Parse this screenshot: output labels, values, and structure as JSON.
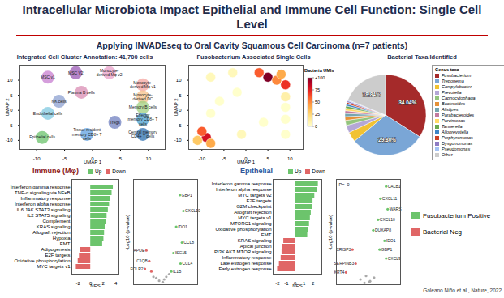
{
  "title": "Intracellular Microbiota Impact Epithelial and Immune Cell Function: Single Cell Level",
  "subtitle": "Applying INVADEseq to Oral Cavity Squamous Cell Carcinoma (n=7 patients)",
  "section_labels": {
    "immune": "Immune (Mφ)",
    "epithelial": "Epithelial"
  },
  "side_legend": [
    {
      "name": "Fusobacterium Positive",
      "color": "#6cc46c"
    },
    {
      "name": "Bacterial Neg",
      "color": "#e06666"
    }
  ],
  "citation": "Galeano Niño et al., Nature, 2022",
  "chart_data": [
    {
      "type": "scatter",
      "title": "Integrated Cell Cluster Annotation: 41,700 cells",
      "x_label": "UMAP 1",
      "y_label": "UMAP 2",
      "xlim": [
        -13,
        13
      ],
      "ylim": [
        -13,
        15
      ],
      "xticks": [
        -10,
        -5,
        0,
        5,
        10
      ],
      "yticks": [
        -10,
        -5,
        0,
        5,
        10
      ],
      "x": [
        -8,
        -3,
        3,
        -2,
        9,
        -6,
        9,
        -8,
        9,
        9,
        4,
        -1,
        9,
        -9
      ],
      "y": [
        11,
        12.5,
        12.5,
        6,
        8.5,
        3,
        4.5,
        -1,
        1,
        -3,
        -4,
        -8,
        -8,
        -9
      ],
      "labels": [
        "MSC v1",
        "MSC V2",
        "Monocyte-derived Mφ v2",
        "Plasma B cells",
        "Monocyte-derived Mφ v1",
        "NK cells",
        "Monocyte-derived DC",
        "Endothelial cells",
        "Memory B cells",
        "Effector memory CD8+ T cells",
        "Tregs",
        "Tissue resident memory CD8+ T cells",
        "Central memory CD4+ T cells",
        "Epithelial cells"
      ],
      "colors": [
        "#c77dd0",
        "#9b59b6",
        "#e8a0c8",
        "#d98cb3",
        "#f4a6a0",
        "#8ca0d0",
        "#f6c28b",
        "#7fc8e0",
        "#a0d080",
        "#4aa0d0",
        "#7080c0",
        "#60a0e0",
        "#2f70b0",
        "#6bc36b"
      ]
    },
    {
      "type": "scatter",
      "title": "Fusobacterium Associated Single Cells",
      "x_label": "UMAP 1",
      "y_label": "UMAP 2",
      "xlim": [
        -13,
        13
      ],
      "ylim": [
        -13,
        15
      ],
      "xticks": [
        -10,
        -5,
        0,
        5,
        10
      ],
      "yticks": [
        -10,
        -5,
        0,
        5,
        10
      ],
      "x": [
        -8,
        -3,
        3,
        -2,
        9,
        -6,
        9,
        -8,
        9,
        9,
        4,
        -1,
        9,
        -9,
        -10,
        -8,
        -11,
        5,
        7,
        8
      ],
      "y": [
        11,
        12.5,
        12.5,
        6,
        8.5,
        3,
        4.5,
        -1,
        1,
        -3,
        -4,
        -8,
        -8,
        -9,
        -7,
        -11,
        -10,
        11,
        10,
        12
      ],
      "umis": [
        5,
        5,
        60,
        0,
        70,
        0,
        10,
        0,
        0,
        0,
        0,
        5,
        0,
        80,
        60,
        40,
        30,
        100,
        50,
        40
      ],
      "color_bar": {
        "label": "Bacteria UMIs",
        "range": [
          0,
          100
        ],
        "ticks": [
          0,
          25,
          50,
          75,
          {
            "value": 100,
            "label": "+100"
          }
        ]
      }
    },
    {
      "type": "pie",
      "title": "Bacterial Taxa Identified",
      "legend_title": "Genus taxa",
      "categories": [
        "Fusobacterium",
        "Treponema",
        "Campylobacter",
        "Prevotella",
        "Capnocytophaga",
        "Bacteroides",
        "Alistipes",
        "Parabacteroides",
        "Parvimonas",
        "Tannerella",
        "Alloprevotella",
        "Porphyromonas",
        "Dysgonomonas",
        "Pseudomonas",
        "Other"
      ],
      "values": [
        34.04,
        29.8,
        4,
        3,
        2,
        1.5,
        1.3,
        1.1,
        1,
        0.9,
        0.8,
        0.7,
        0.6,
        0.42,
        18.84
      ],
      "value_labels": [
        "34.04%",
        "29.80%",
        null,
        null,
        null,
        null,
        null,
        null,
        null,
        null,
        null,
        null,
        null,
        null,
        "18.84%"
      ],
      "colors": [
        "#a52a2a",
        "#7aa6d6",
        "#f1c232",
        "#b4a7d6",
        "#93c47d",
        "#e69138",
        "#76a5af",
        "#c27ba0",
        "#ffd966",
        "#6aa84f",
        "#3d85c6",
        "#cc4125",
        "#8e7cc3",
        "#a4c2f4",
        "#cccccc"
      ]
    },
    {
      "type": "bar",
      "orientation": "horizontal",
      "x_label": "NES",
      "xlim": [
        -3,
        4.5
      ],
      "xticks": [
        -2,
        0,
        2,
        4
      ],
      "categories": [
        "Interferon gamma response",
        "TNF-α signaling via NFκB",
        "Inflammatory response",
        "Interferon alpha response",
        "IL6 JAK STAT3 signaling",
        "IL2 STAT5 signaling",
        "Complement",
        "KRAS signaling",
        "Allograft rejection",
        "Hypoxia",
        "EMT",
        "Adipogenesis",
        "E2F targets",
        "Oxidative phosphorylation",
        "MYC targets v1"
      ],
      "series": [
        {
          "name": "Up",
          "color": "#6cc46c",
          "values": [
            3.6,
            3.4,
            3.2,
            3.0,
            2.8,
            2.6,
            2.5,
            2.3,
            2.2,
            2.1,
            1.9,
            null,
            null,
            null,
            null
          ]
        },
        {
          "name": "Down",
          "color": "#e06666",
          "values": [
            null,
            null,
            null,
            null,
            null,
            null,
            null,
            null,
            null,
            null,
            null,
            -1.6,
            -1.8,
            -2.0,
            -2.3
          ]
        }
      ]
    },
    {
      "type": "scatter",
      "y_label": "-Log10 (p-value)",
      "tick_labels": false,
      "xlim": [
        -4,
        5
      ],
      "ylim": [
        0,
        40
      ],
      "x": [
        2.5,
        3.0,
        2.0,
        2.8,
        1.6,
        2.6,
        1.3,
        0.3,
        -0.4,
        0.6,
        -0.8,
        0.1,
        1.0,
        -1.2,
        -2.2,
        -1.8,
        -2.4,
        -1.5
      ],
      "y": [
        34,
        28,
        22,
        16,
        12,
        8,
        5,
        2,
        1.5,
        3,
        2.5,
        1,
        4,
        3,
        13,
        9,
        6,
        5
      ],
      "labels": [
        "GBP1",
        "CXCL10",
        "IDO1",
        "CCL8",
        "ISG15",
        "CCL4",
        "IL1B",
        null,
        null,
        null,
        null,
        null,
        null,
        null,
        "APOE",
        "C1QB",
        "FOLR2",
        null
      ],
      "colors": [
        "#6cc46c",
        "#6cc46c",
        "#6cc46c",
        "#6cc46c",
        "#6cc46c",
        "#6cc46c",
        "#6cc46c",
        "#aaaaaa",
        "#aaaaaa",
        "#aaaaaa",
        "#aaaaaa",
        "#aaaaaa",
        "#aaaaaa",
        "#aaaaaa",
        "#e06666",
        "#e06666",
        "#e06666",
        "#e06666"
      ]
    },
    {
      "type": "bar",
      "orientation": "horizontal",
      "x_label": "NES",
      "xlim": [
        -2.5,
        3
      ],
      "xticks": [
        -2,
        -1,
        0,
        1,
        2
      ],
      "categories": [
        "Interferon gamma response",
        "Interferon alpha response",
        "MYC targets v2",
        "E2F targets",
        "G2M checkpoint",
        "Allograft rejection",
        "MYC targets v1",
        "MTORC1 signaling",
        "Oxidative phosphorylation",
        "EMT",
        "KRAS signaling",
        "Apical junction",
        "PI3K AKT MTOR signaling",
        "Inflammatory response",
        "Late estrogen response",
        "Early estrogen response"
      ],
      "series": [
        {
          "name": "Up",
          "color": "#6cc46c",
          "values": [
            2.6,
            2.5,
            2.2,
            2.0,
            1.9,
            1.8,
            1.7,
            1.6,
            1.5,
            1.4,
            null,
            null,
            null,
            null,
            null,
            null
          ]
        },
        {
          "name": "Down",
          "color": "#e06666",
          "values": [
            null,
            null,
            null,
            null,
            null,
            null,
            null,
            null,
            null,
            null,
            -1.3,
            -1.4,
            -1.5,
            -1.6,
            -1.8,
            -2.0
          ]
        }
      ]
    },
    {
      "type": "scatter",
      "y_label": "-Log10 (p-value)",
      "tick_labels": false,
      "annotation": "P=~0",
      "xlim": [
        -4,
        4
      ],
      "ylim": [
        0,
        60
      ],
      "x": [
        2.2,
        1.5,
        2.4,
        1.2,
        0.6,
        2.0,
        1.4,
        2.2,
        0.2,
        -0.5,
        0.7,
        -1.0,
        0.1,
        -0.3,
        -1.6,
        -2.0,
        -2.8
      ],
      "y": [
        56,
        49,
        43,
        37,
        31,
        25,
        20,
        15,
        2,
        1,
        4,
        3,
        1.5,
        5,
        12,
        20,
        7
      ],
      "labels": [
        "CALB1",
        "CXCL11",
        "WARS",
        "CXCL10",
        "DUXAP8",
        "IDO1",
        "GBP1",
        "CXCL9",
        null,
        null,
        null,
        null,
        null,
        null,
        "SERPINB3",
        "CRISP3",
        "KRT4"
      ],
      "colors": [
        "#6cc46c",
        "#6cc46c",
        "#6cc46c",
        "#6cc46c",
        "#6cc46c",
        "#6cc46c",
        "#6cc46c",
        "#6cc46c",
        "#aaaaaa",
        "#aaaaaa",
        "#aaaaaa",
        "#aaaaaa",
        "#aaaaaa",
        "#aaaaaa",
        "#e06666",
        "#e06666",
        "#e06666"
      ]
    }
  ]
}
